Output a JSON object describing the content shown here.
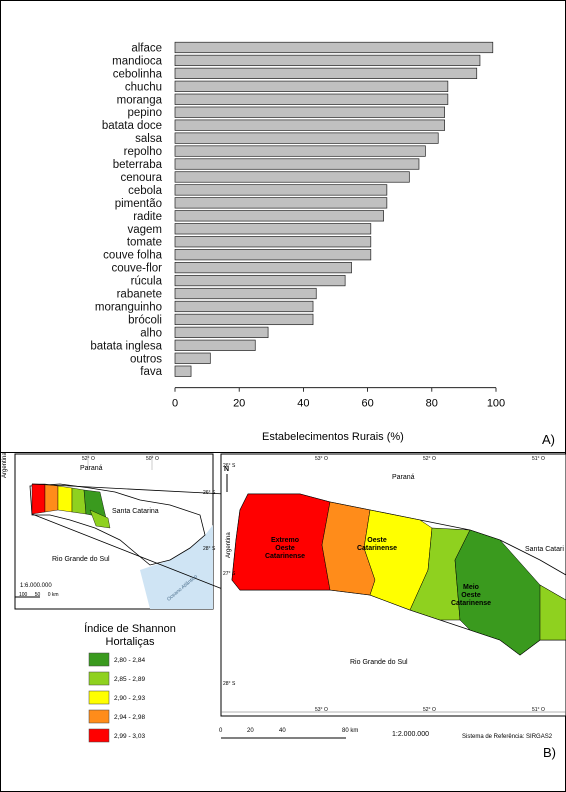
{
  "chart_data": [
    {
      "type": "bar",
      "orientation": "horizontal",
      "categories": [
        "alface",
        "mandioca",
        "cebolinha",
        "chuchu",
        "moranga",
        "pepino",
        "batata doce",
        "salsa",
        "repolho",
        "beterraba",
        "cenoura",
        "cebola",
        "pimentão",
        "radite",
        "vagem",
        "tomate",
        "couve folha",
        "couve-flor",
        "rúcula",
        "rabanete",
        "moranguinho",
        "brócoli",
        "alho",
        "batata inglesa",
        "outros",
        "fava"
      ],
      "values": [
        99,
        95,
        94,
        85,
        85,
        84,
        84,
        82,
        78,
        76,
        73,
        66,
        66,
        65,
        61,
        61,
        61,
        55,
        53,
        44,
        43,
        43,
        29,
        25,
        11,
        5
      ],
      "xlabel": "Estabelecimentos Rurais (%)",
      "ylabel": "",
      "xlim": [
        0,
        100
      ],
      "xticks": [
        "0",
        "20",
        "40",
        "60",
        "80",
        "100"
      ],
      "bar_color": "#c0c0c0",
      "grid": false,
      "panel_label": "A)"
    },
    {
      "type": "map",
      "panel_label": "B)",
      "legend": {
        "title_line1": "Índice de Shannon",
        "title_line2": "Hortaliças",
        "classes": [
          {
            "label": "2,80 - 2,84",
            "color": "#3a9a1e"
          },
          {
            "label": "2,85 - 2,89",
            "color": "#8fd11f"
          },
          {
            "label": "2,90 - 2,93",
            "color": "#ffff00"
          },
          {
            "label": "2,94 - 2,98",
            "color": "#ff8c1a"
          },
          {
            "label": "2,99 - 3,03",
            "color": "#ff0000"
          }
        ]
      },
      "inset": {
        "labels": {
          "parana": "Paraná",
          "santa_catarina": "Santa Catarina",
          "rio_grande": "Rio Grande do Sul",
          "argentina": "Argentina",
          "ocean": "Oceano Atlântico"
        },
        "lon_ticks": [
          "52° O",
          "50° O"
        ],
        "lat_ticks": [
          "26° S",
          "28° S"
        ],
        "scale": "1:6.000.000",
        "scalebar": [
          "100",
          "50",
          "0 km"
        ]
      },
      "main": {
        "labels": {
          "parana": "Paraná",
          "santa_catarina": "Santa Catari",
          "rio_grande": "Rio Grande do Sul",
          "argentina": "Argentina",
          "north": "N"
        },
        "regions": [
          {
            "line1": "Extremo",
            "line2": "Oeste",
            "line3": "Catarinense"
          },
          {
            "line1": "Oeste",
            "line2": "Catarinense"
          },
          {
            "line1": "Meio",
            "line2": "Oeste",
            "line3": "Catarinense"
          }
        ],
        "lon_ticks": [
          "53° O",
          "52° O",
          "51° O"
        ],
        "lat_ticks": [
          "26° S",
          "27° S",
          "28° S"
        ],
        "scalebar": [
          "0",
          "20",
          "40",
          "80 km"
        ],
        "scale": "1:2.000.000",
        "reference": "Sistema de Referência: SIRGAS2"
      }
    }
  ]
}
